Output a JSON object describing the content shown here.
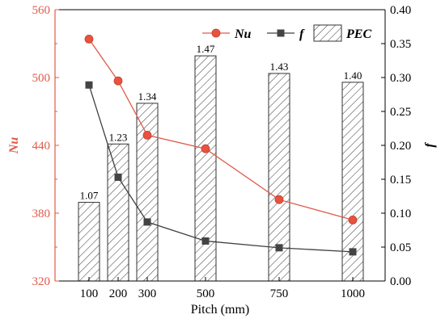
{
  "chart_data": {
    "type": "bar",
    "x_values": [
      100,
      200,
      300,
      500,
      750,
      1000
    ],
    "x_tick_labels": [
      "100",
      "200",
      "300",
      "500",
      "750",
      "1000"
    ],
    "xlabel": "Pitch (mm)",
    "ylabel_left": "Nu",
    "ylabel_right": "f",
    "left_axis": {
      "range": [
        320,
        560
      ],
      "ticks": [
        "320",
        "380",
        "440",
        "500",
        "560"
      ]
    },
    "right_axis": {
      "range": [
        0,
        0.4
      ],
      "ticks": [
        "0.00",
        "0.05",
        "0.10",
        "0.15",
        "0.20",
        "0.25",
        "0.30",
        "0.35",
        "0.40"
      ]
    },
    "series": [
      {
        "name": "PEC",
        "kind": "bar",
        "axis": "right",
        "color": "#555555",
        "values": [
          1.07,
          1.23,
          1.34,
          1.47,
          1.43,
          1.4
        ],
        "labels": [
          "1.07",
          "1.23",
          "1.34",
          "1.47",
          "1.43",
          "1.40"
        ],
        "plotted_right_axis_values": [
          0.116,
          0.202,
          0.262,
          0.332,
          0.306,
          0.293
        ]
      },
      {
        "name": "Nu",
        "kind": "line",
        "axis": "left",
        "color": "#E05A4A",
        "values": [
          534,
          497,
          449,
          437,
          392,
          374
        ]
      },
      {
        "name": "f",
        "kind": "line",
        "axis": "right",
        "color": "#404040",
        "values": [
          0.289,
          0.153,
          0.087,
          0.059,
          0.049,
          0.043
        ]
      }
    ],
    "legend": {
      "position": "top-right",
      "items": [
        {
          "label": "Nu",
          "marker": "circle"
        },
        {
          "label": "f",
          "marker": "square"
        },
        {
          "label": "PEC",
          "marker": "hatched-box"
        }
      ]
    },
    "colors": {
      "left_axis": "#E05A4A",
      "right_axis": "#000000"
    }
  }
}
